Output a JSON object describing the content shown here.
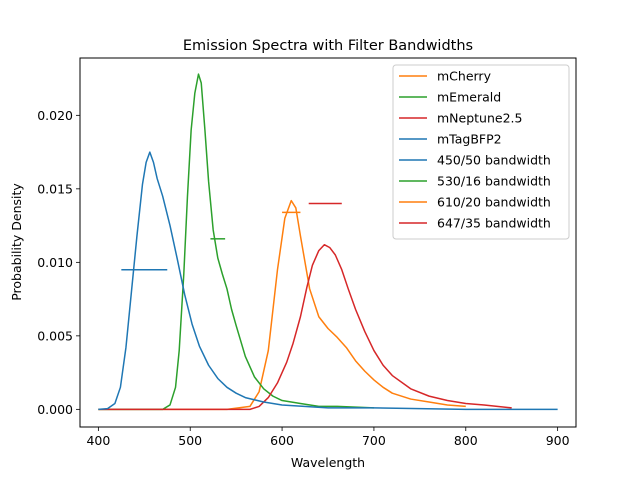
{
  "chart_data": {
    "type": "line",
    "title": "Emission Spectra with Filter Bandwidths",
    "xlabel": "Wavelength",
    "ylabel": "Probability Density",
    "xlim": [
      380,
      920
    ],
    "ylim": [
      -0.0012,
      0.0239
    ],
    "xticks": [
      400,
      500,
      600,
      700,
      800,
      900
    ],
    "yticks": [
      0.0,
      0.005,
      0.01,
      0.015,
      0.02
    ],
    "ytick_labels": [
      "0.000",
      "0.005",
      "0.010",
      "0.015",
      "0.020"
    ],
    "grid": false,
    "legend_position": "top-right",
    "series": [
      {
        "name": "mCherry",
        "color": "#ff7f0e",
        "points": [
          [
            400,
            0
          ],
          [
            540,
            0
          ],
          [
            565,
            0.0002
          ],
          [
            575,
            0.0012
          ],
          [
            585,
            0.004
          ],
          [
            595,
            0.0095
          ],
          [
            603,
            0.013
          ],
          [
            610,
            0.0142
          ],
          [
            615,
            0.0137
          ],
          [
            620,
            0.0118
          ],
          [
            630,
            0.0082
          ],
          [
            640,
            0.0063
          ],
          [
            650,
            0.0055
          ],
          [
            660,
            0.0049
          ],
          [
            670,
            0.0042
          ],
          [
            680,
            0.0033
          ],
          [
            690,
            0.0026
          ],
          [
            700,
            0.002
          ],
          [
            710,
            0.0015
          ],
          [
            720,
            0.0011
          ],
          [
            740,
            0.0007
          ],
          [
            760,
            0.0005
          ],
          [
            780,
            0.0003
          ],
          [
            800,
            0.0002
          ]
        ]
      },
      {
        "name": "mEmerald",
        "color": "#2ca02c",
        "points": [
          [
            400,
            0
          ],
          [
            470,
            0
          ],
          [
            478,
            0.0003
          ],
          [
            484,
            0.0015
          ],
          [
            488,
            0.004
          ],
          [
            493,
            0.0092
          ],
          [
            497,
            0.0145
          ],
          [
            501,
            0.019
          ],
          [
            505,
            0.0215
          ],
          [
            509,
            0.0228
          ],
          [
            512,
            0.0222
          ],
          [
            516,
            0.019
          ],
          [
            520,
            0.0155
          ],
          [
            525,
            0.0122
          ],
          [
            530,
            0.0103
          ],
          [
            535,
            0.0092
          ],
          [
            540,
            0.0082
          ],
          [
            545,
            0.0068
          ],
          [
            550,
            0.0057
          ],
          [
            560,
            0.0036
          ],
          [
            570,
            0.0022
          ],
          [
            580,
            0.0014
          ],
          [
            590,
            0.0009
          ],
          [
            600,
            0.0006
          ],
          [
            620,
            0.0004
          ],
          [
            640,
            0.0002
          ],
          [
            660,
            0.0002
          ],
          [
            700,
            0.0001
          ]
        ]
      },
      {
        "name": "mNeptune2.5",
        "color": "#d62728",
        "points": [
          [
            400,
            0
          ],
          [
            565,
            0
          ],
          [
            575,
            0.0002
          ],
          [
            585,
            0.0008
          ],
          [
            595,
            0.0018
          ],
          [
            605,
            0.0032
          ],
          [
            612,
            0.0045
          ],
          [
            620,
            0.0063
          ],
          [
            627,
            0.0083
          ],
          [
            633,
            0.0098
          ],
          [
            640,
            0.0108
          ],
          [
            646,
            0.0112
          ],
          [
            652,
            0.011
          ],
          [
            658,
            0.0105
          ],
          [
            665,
            0.0095
          ],
          [
            672,
            0.0082
          ],
          [
            680,
            0.0068
          ],
          [
            690,
            0.0053
          ],
          [
            700,
            0.004
          ],
          [
            710,
            0.003
          ],
          [
            720,
            0.0023
          ],
          [
            740,
            0.0014
          ],
          [
            760,
            0.0009
          ],
          [
            780,
            0.0006
          ],
          [
            800,
            0.0004
          ],
          [
            820,
            0.0003
          ],
          [
            850,
            0.0001
          ]
        ]
      },
      {
        "name": "mTagBFP2",
        "color": "#1f77b4",
        "points": [
          [
            400,
            0
          ],
          [
            410,
            5e-05
          ],
          [
            418,
            0.0004
          ],
          [
            424,
            0.0015
          ],
          [
            430,
            0.0042
          ],
          [
            436,
            0.008
          ],
          [
            442,
            0.0118
          ],
          [
            448,
            0.0153
          ],
          [
            452,
            0.0168
          ],
          [
            456,
            0.0175
          ],
          [
            460,
            0.0168
          ],
          [
            464,
            0.0157
          ],
          [
            470,
            0.0145
          ],
          [
            478,
            0.0125
          ],
          [
            486,
            0.0102
          ],
          [
            494,
            0.0078
          ],
          [
            502,
            0.0058
          ],
          [
            510,
            0.0043
          ],
          [
            520,
            0.003
          ],
          [
            530,
            0.0021
          ],
          [
            540,
            0.0015
          ],
          [
            550,
            0.0011
          ],
          [
            560,
            0.0008
          ],
          [
            580,
            0.0005
          ],
          [
            600,
            0.0003
          ],
          [
            650,
            0.0001
          ],
          [
            700,
            0.0001
          ],
          [
            800,
            0
          ],
          [
            900,
            0
          ]
        ]
      }
    ],
    "bandwidths": [
      {
        "name": "450/50 bandwidth",
        "color": "#1f77b4",
        "x_start": 425,
        "x_end": 475,
        "y": 0.0095
      },
      {
        "name": "530/16 bandwidth",
        "color": "#2ca02c",
        "x_start": 522,
        "x_end": 538,
        "y": 0.0116
      },
      {
        "name": "610/20 bandwidth",
        "color": "#ff7f0e",
        "x_start": 600,
        "x_end": 620,
        "y": 0.0134
      },
      {
        "name": "647/35 bandwidth",
        "color": "#d62728",
        "x_start": 629,
        "x_end": 665,
        "y": 0.014
      }
    ],
    "legend_entries": [
      {
        "label": "mCherry",
        "color": "#ff7f0e"
      },
      {
        "label": "mEmerald",
        "color": "#2ca02c"
      },
      {
        "label": "mNeptune2.5",
        "color": "#d62728"
      },
      {
        "label": "mTagBFP2",
        "color": "#1f77b4"
      },
      {
        "label": "450/50 bandwidth",
        "color": "#1f77b4"
      },
      {
        "label": "530/16 bandwidth",
        "color": "#2ca02c"
      },
      {
        "label": "610/20 bandwidth",
        "color": "#ff7f0e"
      },
      {
        "label": "647/35 bandwidth",
        "color": "#d62728"
      }
    ]
  }
}
